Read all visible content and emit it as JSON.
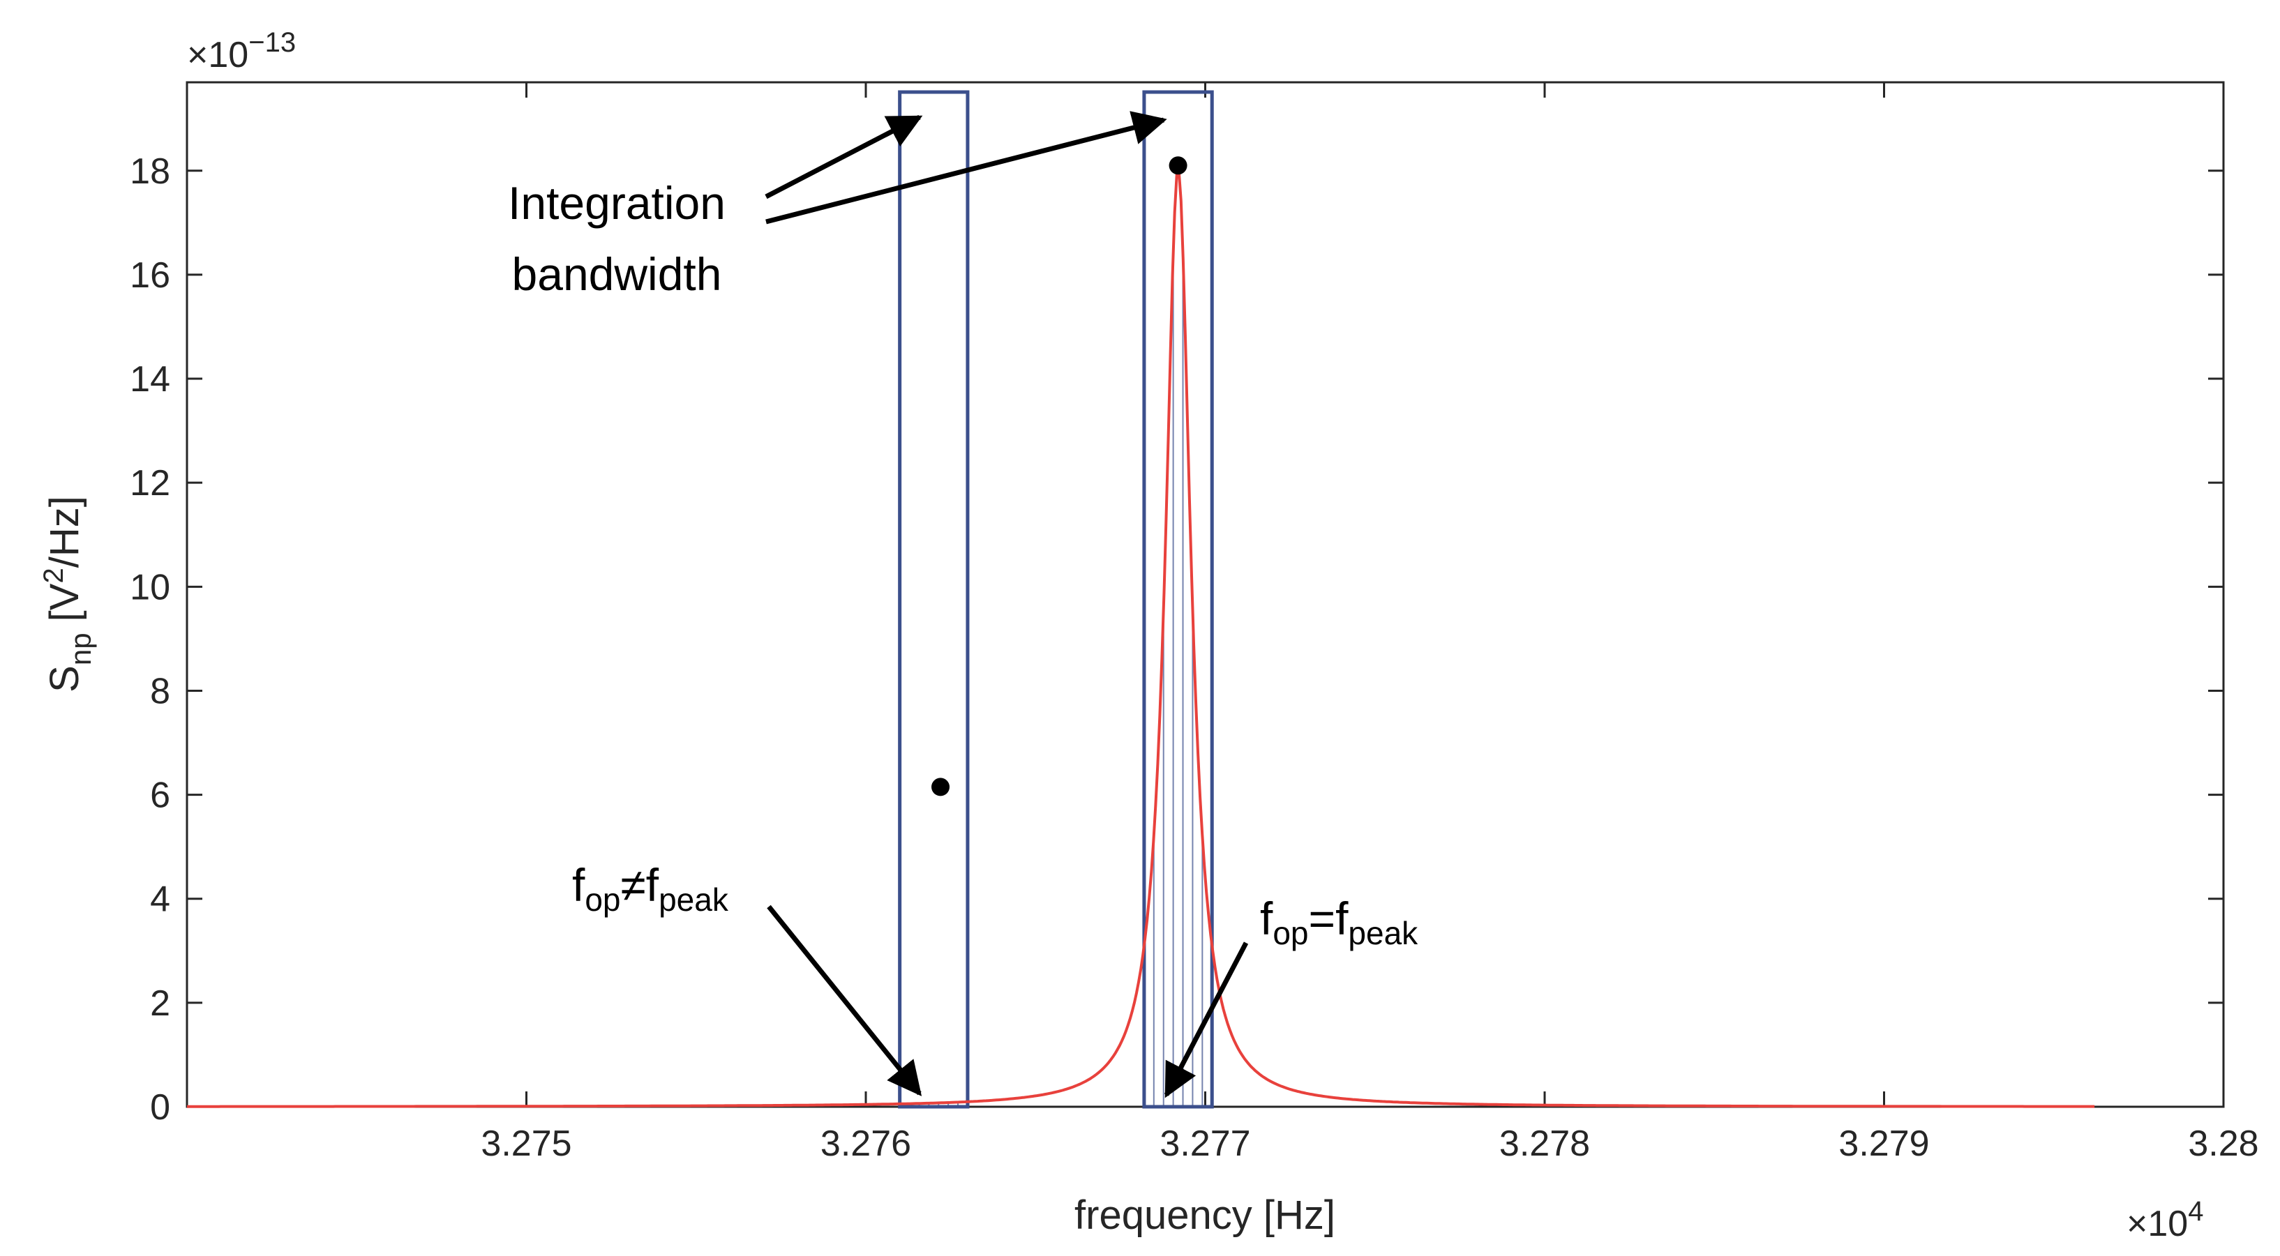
{
  "chart_data": {
    "type": "line",
    "x_axis": {
      "label": "frequency [Hz]",
      "range": [
        3.274,
        3.28
      ],
      "ticks": [
        3.275,
        3.276,
        3.277,
        3.278,
        3.279,
        3.28
      ],
      "tick_labels": [
        "3.275",
        "3.276",
        "3.277",
        "3.278",
        "3.279",
        "3.28"
      ],
      "multiplier": {
        "base": "×10",
        "exp": "4"
      }
    },
    "y_axis": {
      "label_main": "S",
      "label_sub": "np",
      "label_unit_open": " [V",
      "label_unit_sup": "2",
      "label_unit_close": "/Hz]",
      "range": [
        0,
        19.7
      ],
      "ticks": [
        0,
        2,
        4,
        6,
        8,
        10,
        12,
        14,
        16,
        18
      ],
      "tick_labels": [
        "0",
        "2",
        "4",
        "6",
        "8",
        "10",
        "12",
        "14",
        "16",
        "18"
      ],
      "multiplier": {
        "base": "×10",
        "exp": "−13"
      }
    },
    "grid": false,
    "series": [
      {
        "type": "lorentzian-curve",
        "color": "#e8413c",
        "peak_x": 3.27692,
        "peak_y": 18.05,
        "x_start": 3.274,
        "x_end": 3.27962,
        "reference_points": [
          {
            "x": 3.274,
            "y": 0.6
          },
          {
            "x": 3.27618,
            "y": 6.1
          },
          {
            "x": 3.27692,
            "y": 18.05
          },
          {
            "x": 3.27962,
            "y": 0.68
          }
        ]
      }
    ],
    "points": [
      {
        "name": "off-peak-point",
        "x": 3.27622,
        "y": 6.15
      },
      {
        "name": "peak-point",
        "x": 3.27692,
        "y": 18.1
      }
    ],
    "bands": [
      {
        "name": "off-peak-band",
        "x_min": 3.2761,
        "x_max": 3.2763,
        "color": "#3b4f8c"
      },
      {
        "name": "peak-band",
        "x_min": 3.27682,
        "x_max": 3.27702,
        "color": "#3b4f8c"
      }
    ],
    "annotations": {
      "integration": {
        "line1": "Integration",
        "line2": "bandwidth"
      },
      "off_peak": {
        "f": "f",
        "sub1": "op",
        "rel": "≠",
        "f2": "f",
        "sub2": "peak"
      },
      "on_peak": {
        "f": "f",
        "sub1": "op",
        "rel": "=",
        "f2": "f",
        "sub2": "peak"
      }
    }
  }
}
